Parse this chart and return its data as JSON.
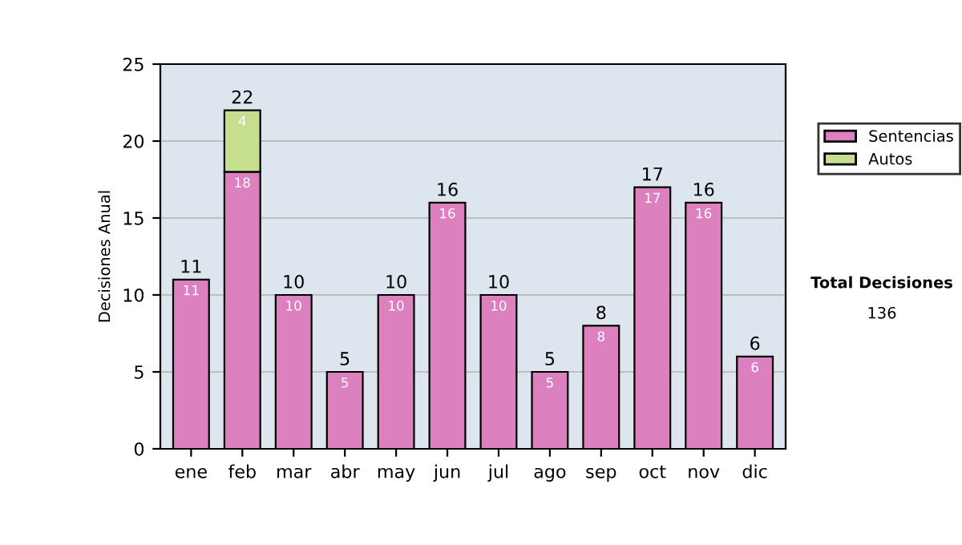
{
  "chart_data": {
    "type": "bar",
    "ylabel": "Decisiones Anual",
    "categories": [
      "ene",
      "feb",
      "mar",
      "abr",
      "may",
      "jun",
      "jul",
      "ago",
      "sep",
      "oct",
      "nov",
      "dic"
    ],
    "stacked": true,
    "series": [
      {
        "name": "Sentencias",
        "color": "#dd80c0",
        "values": [
          11,
          18,
          10,
          5,
          10,
          16,
          10,
          5,
          8,
          17,
          16,
          6
        ]
      },
      {
        "name": "Autos",
        "color": "#c6df8e",
        "values": [
          null,
          4,
          null,
          null,
          null,
          null,
          null,
          null,
          null,
          null,
          null,
          null
        ]
      }
    ],
    "totals": [
      "11",
      "22",
      "10",
      "5",
      "10",
      "16",
      "10",
      "5",
      "8",
      "17",
      "16",
      "6"
    ],
    "data_labels": true,
    "ylim": [
      0,
      25
    ],
    "yticks": [
      0,
      5,
      10,
      15,
      20,
      25
    ],
    "grid": "y",
    "legend": "right",
    "annotations": [
      "Total Decisiones",
      "136"
    ]
  }
}
